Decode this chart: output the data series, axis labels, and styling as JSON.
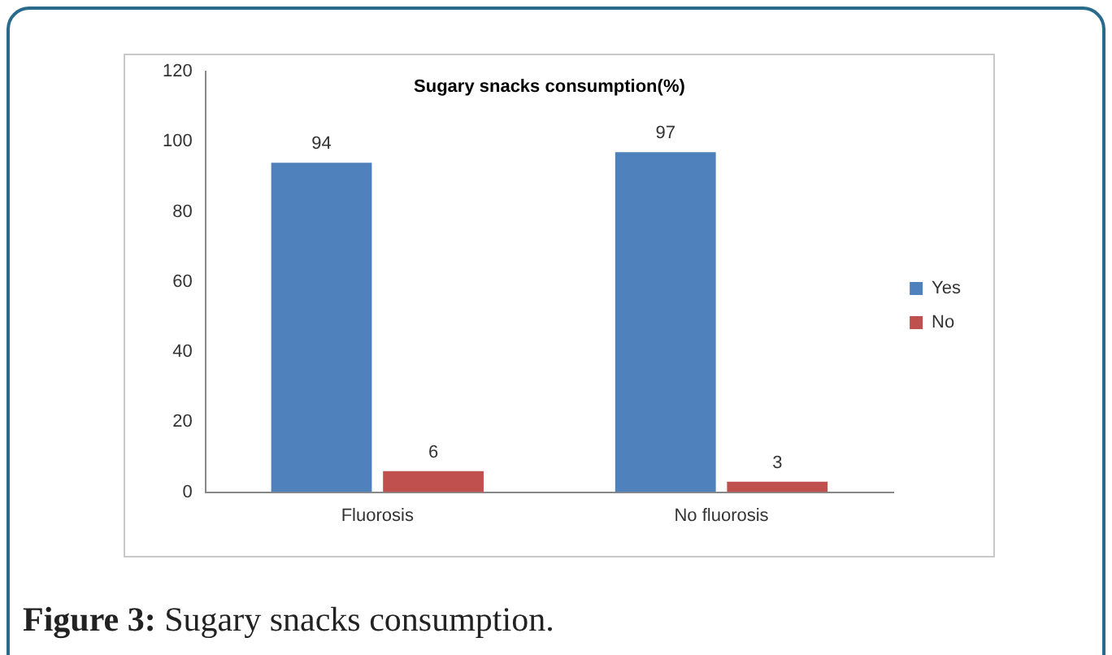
{
  "chart_data": {
    "type": "bar",
    "title": "Sugary snacks consumption(%)",
    "categories": [
      "Fluorosis",
      "No fluorosis"
    ],
    "series": [
      {
        "name": "Yes",
        "color": "#4f81bd",
        "values": [
          94,
          97
        ]
      },
      {
        "name": "No",
        "color": "#c0504d",
        "values": [
          6,
          3
        ]
      }
    ],
    "ylim": [
      0,
      120
    ],
    "yticks": [
      0,
      20,
      40,
      60,
      80,
      100,
      120
    ],
    "grid": false,
    "legend": "right",
    "data_labels": true,
    "annotations": [
      "Figure 3: Sugary snacks consumption."
    ]
  }
}
